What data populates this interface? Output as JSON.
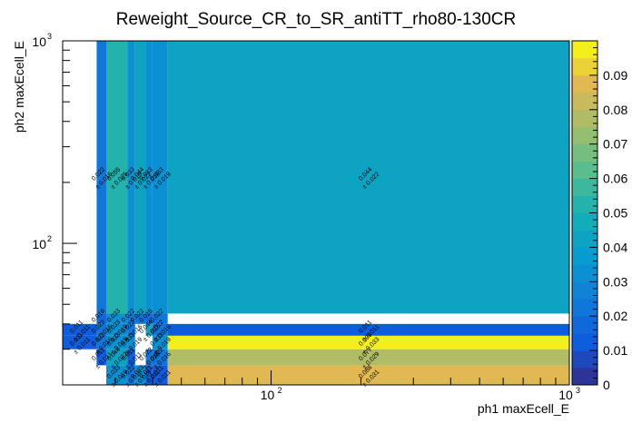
{
  "chart_data": {
    "type": "heatmap",
    "title": "Reweight_Source_CR_to_SR_antiTT_rho80-130CR",
    "xlabel": "ph1 maxEcell_E",
    "ylabel": "ph2 maxEcell_E",
    "x_scale": "log",
    "y_scale": "log",
    "xlim": [
      20,
      1000
    ],
    "ylim": [
      20,
      1000
    ],
    "x_ticks": [
      {
        "value": 100,
        "base": "10",
        "exp": "2"
      },
      {
        "value": 1000,
        "base": "10",
        "exp": "3"
      }
    ],
    "y_ticks": [
      {
        "value": 100,
        "base": "10",
        "exp": "2"
      },
      {
        "value": 1000,
        "base": "10",
        "exp": "3"
      }
    ],
    "colorbar": {
      "min": 0,
      "max": 0.1,
      "ticks": [
        {
          "value": 0,
          "label": "0"
        },
        {
          "value": 0.01,
          "label": "0.01"
        },
        {
          "value": 0.02,
          "label": "0.02"
        },
        {
          "value": 0.03,
          "label": "0.03"
        },
        {
          "value": 0.04,
          "label": "0.04"
        },
        {
          "value": 0.05,
          "label": "0.05"
        },
        {
          "value": 0.06,
          "label": "0.06"
        },
        {
          "value": 0.07,
          "label": "0.07"
        },
        {
          "value": 0.08,
          "label": "0.08"
        },
        {
          "value": 0.09,
          "label": "0.09"
        }
      ]
    },
    "x_edges": [
      20,
      26,
      28,
      33,
      35,
      38,
      40,
      45,
      1000
    ],
    "y_edges": [
      20,
      25,
      30,
      35,
      40,
      45,
      1000
    ],
    "cells": [
      {
        "x0": 28,
        "x1": 33,
        "y0": 20,
        "y1": 25,
        "value": 0.033,
        "label": "0.033",
        "err": "± 0.019"
      },
      {
        "x0": 33,
        "x1": 35,
        "y0": 20,
        "y1": 25,
        "value": 0.022,
        "label": "0.022",
        "err": "± 0.016"
      },
      {
        "x0": 35,
        "x1": 38,
        "y0": 20,
        "y1": 25,
        "value": 0.033,
        "label": "0.033",
        "err": "± 0.019"
      },
      {
        "x0": 38,
        "x1": 40,
        "y0": 20,
        "y1": 25,
        "value": 0.011,
        "label": "0.011",
        "err": "± 0.011"
      },
      {
        "x0": 40,
        "x1": 45,
        "y0": 20,
        "y1": 25,
        "value": 0.011,
        "label": "0.011",
        "err": "± 0.011"
      },
      {
        "x0": 45,
        "x1": 1000,
        "y0": 20,
        "y1": 25,
        "value": 0.088,
        "label": "0.088",
        "err": "± 0.031"
      },
      {
        "x0": 26,
        "x1": 28,
        "y0": 25,
        "y1": 30,
        "value": 0.011,
        "label": "0.011",
        "err": "± 0.011"
      },
      {
        "x0": 28,
        "x1": 33,
        "y0": 25,
        "y1": 30,
        "value": 0.044,
        "label": "0.044",
        "err": "± 0.022"
      },
      {
        "x0": 33,
        "x1": 35,
        "y0": 25,
        "y1": 30,
        "value": 0.011,
        "label": "0.011",
        "err": "± 0.011"
      },
      {
        "x0": 38,
        "x1": 40,
        "y0": 25,
        "y1": 30,
        "value": 0.022,
        "label": "0.022",
        "err": "± 0.016"
      },
      {
        "x0": 40,
        "x1": 45,
        "y0": 25,
        "y1": 30,
        "value": 0.022,
        "label": "0.022",
        "err": "± 0.016"
      },
      {
        "x0": 45,
        "x1": 1000,
        "y0": 25,
        "y1": 30,
        "value": 0.077,
        "label": "0.077",
        "err": "± 0.029"
      },
      {
        "x0": 20,
        "x1": 26,
        "y0": 30,
        "y1": 35,
        "value": 0.011,
        "label": "0.011",
        "err": "± 0.011"
      },
      {
        "x0": 26,
        "x1": 28,
        "y0": 30,
        "y1": 35,
        "value": 0.022,
        "label": "0.022",
        "err": "± 0.016"
      },
      {
        "x0": 28,
        "x1": 33,
        "y0": 30,
        "y1": 35,
        "value": 0.033,
        "label": "0.033",
        "err": "± 0.019"
      },
      {
        "x0": 33,
        "x1": 35,
        "y0": 30,
        "y1": 35,
        "value": 0.033,
        "label": "0.033",
        "err": "± 0.019"
      },
      {
        "x0": 40,
        "x1": 45,
        "y0": 30,
        "y1": 35,
        "value": 0.033,
        "label": "0.033",
        "err": "± 0.019"
      },
      {
        "x0": 45,
        "x1": 1000,
        "y0": 30,
        "y1": 35,
        "value": 0.099,
        "label": "0.099",
        "err": "± 0.033"
      },
      {
        "x0": 20,
        "x1": 26,
        "y0": 35,
        "y1": 40,
        "value": 0.011,
        "label": "0.011",
        "err": "± 0.011"
      },
      {
        "x0": 26,
        "x1": 28,
        "y0": 35,
        "y1": 40,
        "value": 0.022,
        "label": "0.022",
        "err": "± 0.016"
      },
      {
        "x0": 28,
        "x1": 33,
        "y0": 35,
        "y1": 40,
        "value": 0.033,
        "label": "0.033",
        "err": "± 0.019"
      },
      {
        "x0": 33,
        "x1": 35,
        "y0": 35,
        "y1": 40,
        "value": 0.022,
        "label": "0.022",
        "err": "± 0.016"
      },
      {
        "x0": 38,
        "x1": 40,
        "y0": 35,
        "y1": 40,
        "value": 0.044,
        "label": "0.044",
        "err": "± 0.022"
      },
      {
        "x0": 40,
        "x1": 45,
        "y0": 35,
        "y1": 40,
        "value": 0.022,
        "label": "0.022",
        "err": "± 0.016"
      },
      {
        "x0": 45,
        "x1": 1000,
        "y0": 35,
        "y1": 40,
        "value": 0.011,
        "label": "0.011",
        "err": "± 0.011"
      },
      {
        "x0": 26,
        "x1": 28,
        "y0": 40,
        "y1": 45,
        "value": 0.016,
        "label": "0.016",
        "err": ""
      },
      {
        "x0": 28,
        "x1": 33,
        "y0": 40,
        "y1": 45,
        "value": 0.033,
        "label": "0.033",
        "err": ""
      },
      {
        "x0": 33,
        "x1": 35,
        "y0": 40,
        "y1": 45,
        "value": 0.022,
        "label": "0.022",
        "err": ""
      },
      {
        "x0": 35,
        "x1": 38,
        "y0": 40,
        "y1": 45,
        "value": 0.022,
        "label": "0.022",
        "err": ""
      },
      {
        "x0": 38,
        "x1": 40,
        "y0": 40,
        "y1": 45,
        "value": 0.016,
        "label": "0.016",
        "err": ""
      },
      {
        "x0": 40,
        "x1": 45,
        "y0": 40,
        "y1": 45,
        "value": 0.022,
        "label": "0.022",
        "err": ""
      },
      {
        "x0": 26,
        "x1": 28,
        "y0": 45,
        "y1": 1000,
        "value": 0.022,
        "label": "0.022",
        "err": "± 0.016"
      },
      {
        "x0": 28,
        "x1": 33,
        "y0": 45,
        "y1": 1000,
        "value": 0.055,
        "label": "0.055",
        "err": "± 0.025"
      },
      {
        "x0": 33,
        "x1": 35,
        "y0": 45,
        "y1": 1000,
        "value": 0.033,
        "label": "0.033",
        "err": "± 0.019"
      },
      {
        "x0": 35,
        "x1": 38,
        "y0": 45,
        "y1": 1000,
        "value": 0.044,
        "label": "0.044",
        "err": "± 0.022"
      },
      {
        "x0": 38,
        "x1": 40,
        "y0": 45,
        "y1": 1000,
        "value": 0.033,
        "label": "0.033",
        "err": "± 0.019"
      },
      {
        "x0": 40,
        "x1": 45,
        "y0": 45,
        "y1": 1000,
        "value": 0.033,
        "label": "0.033",
        "err": "± 0.019"
      },
      {
        "x0": 45,
        "x1": 1000,
        "y0": 45,
        "y1": 1000,
        "value": 0.044,
        "label": "0.044",
        "err": "± 0.022"
      }
    ]
  }
}
